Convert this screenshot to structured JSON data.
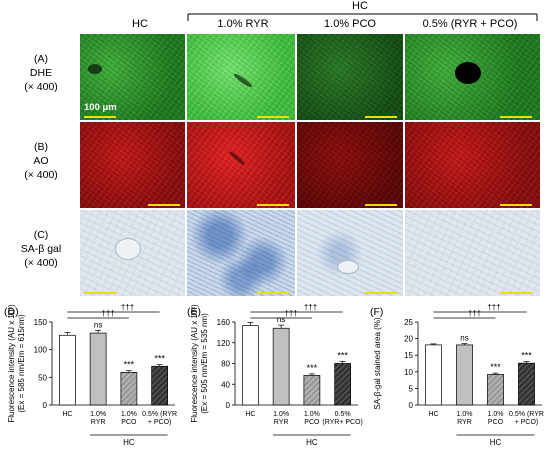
{
  "header": {
    "group_label": "HC",
    "columns": [
      "HC",
      "1.0% RYR",
      "1.0% PCO",
      "0.5% (RYR + PCO)"
    ]
  },
  "rows": [
    {
      "letter": "(A)",
      "stain": "DHE",
      "mag": "(× 400)"
    },
    {
      "letter": "(B)",
      "stain": "AO",
      "mag": "(× 400)"
    },
    {
      "letter": "(C)",
      "stain": "SA-β gal",
      "mag": "(× 400)"
    }
  ],
  "scale_bar_label": "100 μm",
  "colors": {
    "bar_hc": "#ffffff",
    "bar_ryr": "#c0c0c0",
    "bar_pco": "#8a8a8a",
    "bar_mix": "#3a3a3a",
    "scale_bar": "#e8e000"
  },
  "chart_data": [
    {
      "panel": "(D)",
      "type": "bar",
      "categories": [
        "HC",
        "1.0%\nRYR",
        "1.0%\nPCO",
        "0.5% (RYR\n+ PCO)"
      ],
      "values": [
        126,
        130,
        59,
        70
      ],
      "errors": [
        5,
        5,
        3,
        3
      ],
      "ylim": [
        0,
        150
      ],
      "yticks": [
        0,
        50,
        100,
        150
      ],
      "ylabel": "Fluorescence intensity (AU x 10³)",
      "ylabel2": "(Ex = 585 nm/Em = 615nm)",
      "annotations": [
        "ns",
        "***",
        "***"
      ],
      "comparisons": [
        "†††",
        "†††"
      ],
      "group_label": "HC"
    },
    {
      "panel": "(E)",
      "type": "bar",
      "categories": [
        "HC",
        "1.0%\nRYR",
        "1.0%\nPCO",
        "0.5%\n(RYR+ PCO)"
      ],
      "values": [
        153,
        148,
        57,
        80
      ],
      "errors": [
        6,
        6,
        3,
        4
      ],
      "ylim": [
        0,
        160
      ],
      "yticks": [
        0,
        40,
        80,
        120,
        160
      ],
      "ylabel": "Fluorescence intensity (AU x 10³)",
      "ylabel2": "(Ex = 505 nm/Em = 535 nm)",
      "annotations": [
        "ns",
        "***",
        "***"
      ],
      "comparisons": [
        "†††",
        "†††"
      ],
      "group_label": "HC"
    },
    {
      "panel": "(F)",
      "type": "bar",
      "categories": [
        "HC",
        "1.0%\nRYR",
        "1.0%\nPCO",
        "0.5% (RYR\n+ PCO)"
      ],
      "values": [
        18.1,
        18.1,
        9.2,
        12.6
      ],
      "errors": [
        0.3,
        0.4,
        0.4,
        0.5
      ],
      "ylim": [
        0,
        25
      ],
      "yticks": [
        0,
        5,
        10,
        15,
        20,
        25
      ],
      "ylabel": "SA-β-gal stained area (%)",
      "ylabel2": "",
      "annotations": [
        "ns",
        "***",
        "***"
      ],
      "comparisons": [
        "†††",
        "†††"
      ],
      "group_label": "HC"
    }
  ]
}
